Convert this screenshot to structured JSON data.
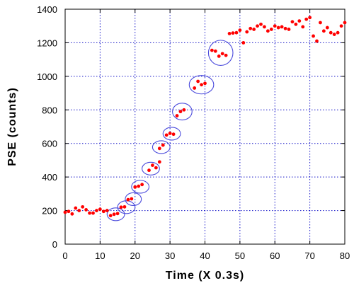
{
  "chart_data": {
    "type": "scatter",
    "title": "",
    "xlabel": "Time (X 0.3s)",
    "ylabel": "PSE (counts)",
    "xlim": [
      0,
      80
    ],
    "ylim": [
      0,
      1400
    ],
    "x_ticks": [
      0,
      10,
      20,
      30,
      40,
      50,
      60,
      70,
      80
    ],
    "y_ticks": [
      0,
      200,
      400,
      600,
      800,
      1000,
      1200,
      1400
    ],
    "grid": true,
    "grid_style": "dotted",
    "legend": "none",
    "colors": {
      "points": "#ff0000",
      "ellipses": "#4a4adc",
      "grid": "#1414c8"
    },
    "series": [
      {
        "points": [
          [
            0,
            190
          ],
          [
            1,
            195
          ],
          [
            2,
            180
          ],
          [
            3,
            215
          ],
          [
            4,
            200
          ],
          [
            5,
            222
          ],
          [
            6,
            205
          ],
          [
            7,
            185
          ],
          [
            8,
            185
          ],
          [
            9,
            200
          ],
          [
            10,
            208
          ],
          [
            11,
            195
          ],
          [
            12,
            200
          ],
          [
            13,
            170
          ],
          [
            14,
            178
          ],
          [
            15,
            182
          ],
          [
            16,
            220
          ],
          [
            17,
            222
          ],
          [
            18,
            265
          ],
          [
            19,
            270
          ],
          [
            20,
            340
          ],
          [
            21,
            345
          ],
          [
            22,
            355
          ],
          [
            24,
            440
          ],
          [
            25,
            470
          ],
          [
            26,
            455
          ],
          [
            27,
            490
          ],
          [
            27,
            570
          ],
          [
            28,
            590
          ],
          [
            29,
            650
          ],
          [
            30,
            660
          ],
          [
            31,
            655
          ],
          [
            32,
            765
          ],
          [
            33,
            790
          ],
          [
            34,
            800
          ],
          [
            37,
            930
          ],
          [
            38,
            970
          ],
          [
            39,
            950
          ],
          [
            40,
            958
          ],
          [
            42,
            1155
          ],
          [
            43,
            1150
          ],
          [
            44,
            1120
          ],
          [
            45,
            1135
          ],
          [
            46,
            1125
          ],
          [
            47,
            1255
          ],
          [
            48,
            1258
          ],
          [
            49,
            1260
          ],
          [
            50,
            1275
          ],
          [
            51,
            1200
          ],
          [
            52,
            1265
          ],
          [
            53,
            1285
          ],
          [
            54,
            1280
          ],
          [
            55,
            1300
          ],
          [
            56,
            1310
          ],
          [
            57,
            1295
          ],
          [
            58,
            1270
          ],
          [
            59,
            1280
          ],
          [
            60,
            1300
          ],
          [
            61,
            1290
          ],
          [
            62,
            1295
          ],
          [
            63,
            1285
          ],
          [
            64,
            1280
          ],
          [
            65,
            1325
          ],
          [
            66,
            1310
          ],
          [
            67,
            1330
          ],
          [
            68,
            1295
          ],
          [
            69,
            1340
          ],
          [
            70,
            1350
          ],
          [
            71,
            1240
          ],
          [
            72,
            1210
          ],
          [
            73,
            1320
          ],
          [
            74,
            1270
          ],
          [
            75,
            1290
          ],
          [
            76,
            1260
          ],
          [
            77,
            1250
          ],
          [
            78,
            1260
          ],
          [
            79,
            1300
          ],
          [
            80,
            1320
          ]
        ]
      }
    ],
    "highlight_ellipses": [
      {
        "cx": 14.5,
        "cy": 178,
        "rx": 2.5,
        "ry": 38
      },
      {
        "cx": 17.5,
        "cy": 220,
        "rx": 2.5,
        "ry": 38
      },
      {
        "cx": 19.5,
        "cy": 268,
        "rx": 2.3,
        "ry": 38
      },
      {
        "cx": 21.5,
        "cy": 342,
        "rx": 2.5,
        "ry": 38
      },
      {
        "cx": 24.5,
        "cy": 450,
        "rx": 2.5,
        "ry": 38
      },
      {
        "cx": 27.5,
        "cy": 578,
        "rx": 2.5,
        "ry": 38
      },
      {
        "cx": 30.5,
        "cy": 658,
        "rx": 2.5,
        "ry": 38
      },
      {
        "cx": 33.5,
        "cy": 790,
        "rx": 2.8,
        "ry": 50
      },
      {
        "cx": 39.0,
        "cy": 950,
        "rx": 3.5,
        "ry": 55
      },
      {
        "cx": 44.5,
        "cy": 1140,
        "rx": 3.5,
        "ry": 75
      }
    ]
  }
}
